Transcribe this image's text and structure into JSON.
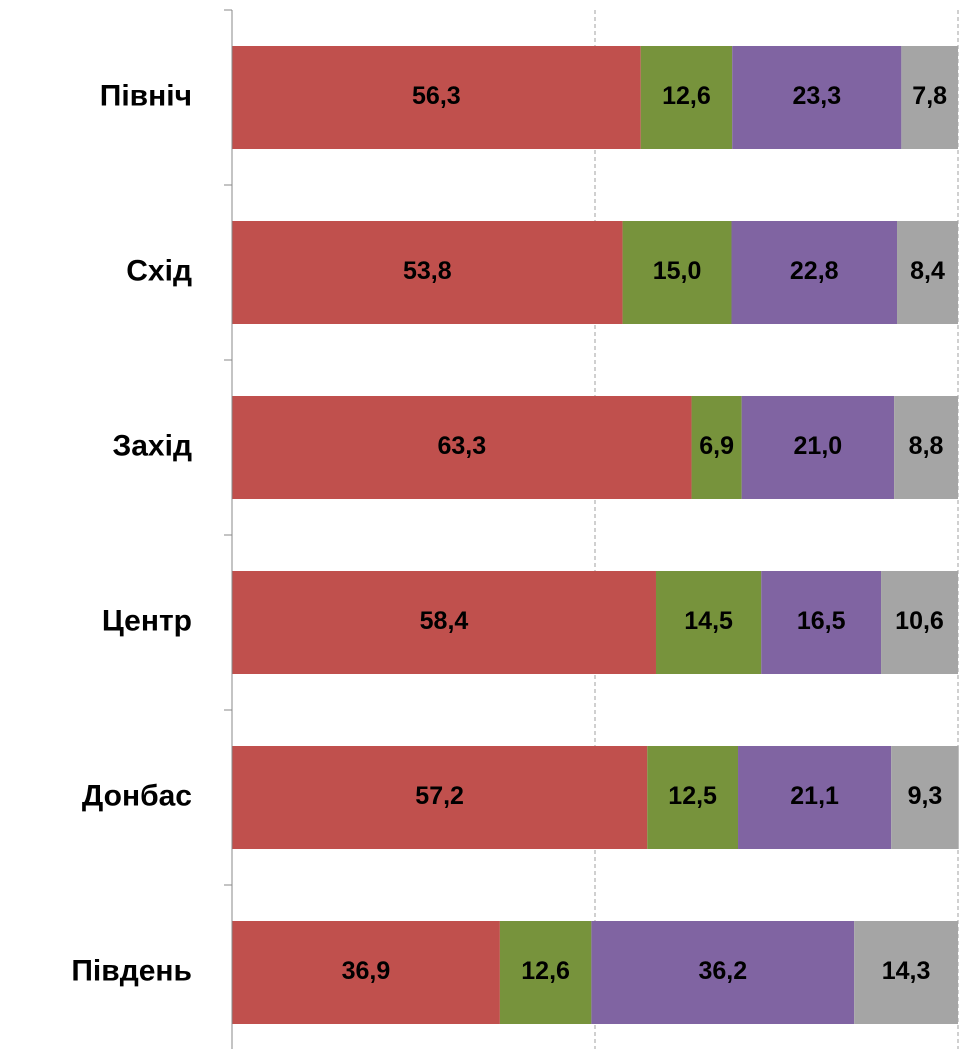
{
  "chart_data": {
    "type": "stacked_barh",
    "categories": [
      "Північ",
      "Схід",
      "Захід",
      "Центр",
      "Донбас",
      "Південь"
    ],
    "series": [
      {
        "color": "#c0504d",
        "values": [
          56.3,
          53.8,
          63.3,
          58.4,
          57.2,
          36.9
        ],
        "value_labels": [
          "56,3",
          "53,8",
          "63,3",
          "58,4",
          "57,2",
          "36,9"
        ]
      },
      {
        "color": "#77933c",
        "values": [
          12.6,
          15.0,
          6.9,
          14.5,
          12.5,
          12.6
        ],
        "value_labels": [
          "12,6",
          "15,0",
          "6,9",
          "14,5",
          "12,5",
          "12,6"
        ]
      },
      {
        "color": "#8064a2",
        "values": [
          23.3,
          22.8,
          21.0,
          16.5,
          21.1,
          36.2
        ],
        "value_labels": [
          "23,3",
          "22,8",
          "21,0",
          "16,5",
          "21,1",
          "36,2"
        ]
      },
      {
        "color": "#a5a5a5",
        "values": [
          7.8,
          8.4,
          8.8,
          10.6,
          9.3,
          14.3
        ],
        "value_labels": [
          "7,8",
          "8,4",
          "8,8",
          "10,6",
          "9,3",
          "14,3"
        ]
      }
    ],
    "xlim": [
      0,
      100
    ],
    "xgrid": [
      50,
      100
    ]
  }
}
